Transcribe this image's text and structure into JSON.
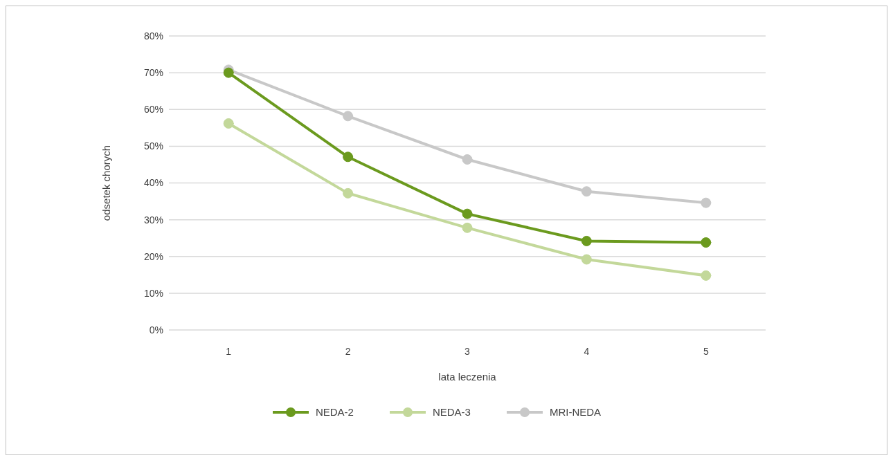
{
  "chart_data": {
    "type": "line",
    "xlabel": "lata leczenia",
    "ylabel": "odsetek chorych",
    "categories": [
      "1",
      "2",
      "3",
      "4",
      "5"
    ],
    "series": [
      {
        "name": "NEDA-2",
        "color": "#6b9a1e",
        "values": [
          70,
          47.1,
          31.6,
          24.2,
          23.8
        ]
      },
      {
        "name": "NEDA-3",
        "color": "#c3d89a",
        "values": [
          56.2,
          37.2,
          27.8,
          19.2,
          14.8
        ]
      },
      {
        "name": "MRI-NEDA",
        "color": "#c8c8c8",
        "values": [
          70.8,
          58.2,
          46.4,
          37.7,
          34.6
        ]
      }
    ],
    "ylim": [
      0,
      80
    ],
    "yticks": [
      {
        "value": 0,
        "label": "0%"
      },
      {
        "value": 10,
        "label": "10%"
      },
      {
        "value": 20,
        "label": "20%"
      },
      {
        "value": 30,
        "label": "30%"
      },
      {
        "value": 40,
        "label": "40%"
      },
      {
        "value": 50,
        "label": "50%"
      },
      {
        "value": 60,
        "label": "60%"
      },
      {
        "value": 70,
        "label": "70%"
      },
      {
        "value": 80,
        "label": "80%"
      }
    ],
    "grid": "y",
    "legend": "bottom",
    "marker": "circle",
    "line_style": "solid"
  }
}
